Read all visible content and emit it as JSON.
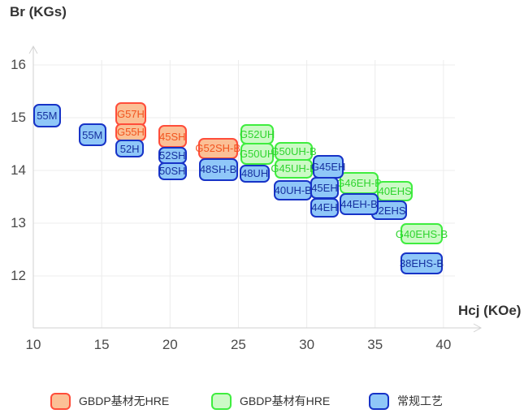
{
  "chart_data": {
    "type": "scatter",
    "title": "",
    "xlabel": "Hcj (KOe)",
    "ylabel": "Br (KGs)",
    "x_ticks": [
      10,
      15,
      20,
      25,
      30,
      35,
      40
    ],
    "y_ticks": [
      16,
      15,
      14,
      13,
      12
    ],
    "x_range": [
      10,
      43
    ],
    "y_range": [
      11,
      16.3
    ],
    "grid": true,
    "legend_position": "bottom",
    "series": [
      {
        "name": "GBDP基材无HRE",
        "colors": {
          "fill": "#FBC096",
          "border": "#FF4D3A",
          "text": "#F2541F"
        },
        "boxes": [
          {
            "label": "G57H",
            "hcj": [
              16.0,
              18.25
            ],
            "br": [
              14.85,
              15.3
            ]
          },
          {
            "label": "G55H",
            "hcj": [
              16.0,
              18.25
            ],
            "br": [
              14.55,
              14.9
            ]
          },
          {
            "label": "45SH",
            "hcj": [
              19.15,
              21.2
            ],
            "br": [
              14.43,
              14.86
            ]
          },
          {
            "label": "G52SH-B",
            "hcj": [
              22.05,
              24.95
            ],
            "br": [
              14.22,
              14.62
            ]
          }
        ]
      },
      {
        "name": "GBDP基材有HRE",
        "colors": {
          "fill": "#CCFAC6",
          "border": "#3FED3F",
          "text": "#2FD42F"
        },
        "boxes": [
          {
            "label": "G52UH",
            "hcj": [
              25.15,
              27.6
            ],
            "br": [
              14.49,
              14.88
            ]
          },
          {
            "label": "G50UH",
            "hcj": [
              25.15,
              27.6
            ],
            "br": [
              14.11,
              14.52
            ]
          },
          {
            "label": "G50UH-B",
            "hcj": [
              27.65,
              30.45
            ],
            "br": [
              14.18,
              14.54
            ]
          },
          {
            "label": "G45UH-B",
            "hcj": [
              27.65,
              30.45
            ],
            "br": [
              13.85,
              14.22
            ]
          },
          {
            "label": "G46EH-B",
            "hcj": [
              32.4,
              35.25
            ],
            "br": [
              13.55,
              13.97
            ]
          },
          {
            "label": "40EHS",
            "hcj": [
              35.15,
              37.75
            ],
            "br": [
              13.42,
              13.8
            ]
          },
          {
            "label": "G40EHS-B",
            "hcj": [
              36.85,
              39.95
            ],
            "br": [
              12.6,
              13.0
            ]
          }
        ]
      },
      {
        "name": "常规工艺",
        "colors": {
          "fill": "#8FC7F8",
          "border": "#1733C7",
          "text": "#16309F"
        },
        "boxes": [
          {
            "label": "55M",
            "hcj": [
              10.0,
              12.0
            ],
            "br": [
              14.82,
              15.26
            ]
          },
          {
            "label": "55M",
            "hcj": [
              13.3,
              15.35
            ],
            "br": [
              14.46,
              14.89
            ]
          },
          {
            "label": "52H",
            "hcj": [
              16.0,
              18.1
            ],
            "br": [
              14.25,
              14.58
            ]
          },
          {
            "label": "52SH",
            "hcj": [
              19.15,
              21.2
            ],
            "br": [
              14.12,
              14.45
            ]
          },
          {
            "label": "50SH",
            "hcj": [
              19.15,
              21.2
            ],
            "br": [
              13.82,
              14.15
            ]
          },
          {
            "label": "48SH-B",
            "hcj": [
              22.1,
              24.95
            ],
            "br": [
              13.8,
              14.23
            ]
          },
          {
            "label": "48UH",
            "hcj": [
              25.1,
              27.3
            ],
            "br": [
              13.77,
              14.11
            ]
          },
          {
            "label": "40UH-B",
            "hcj": [
              27.6,
              30.4
            ],
            "br": [
              13.43,
              13.82
            ]
          },
          {
            "label": "G45EH",
            "hcj": [
              30.45,
              32.7
            ],
            "br": [
              13.85,
              14.29
            ]
          },
          {
            "label": "45EH",
            "hcj": [
              30.25,
              32.35
            ],
            "br": [
              13.46,
              13.88
            ]
          },
          {
            "label": "44EH",
            "hcj": [
              30.25,
              32.35
            ],
            "br": [
              13.11,
              13.48
            ]
          },
          {
            "label": "42EHS",
            "hcj": [
              34.7,
              37.35
            ],
            "br": [
              13.06,
              13.43
            ]
          },
          {
            "label": "44EH-B",
            "hcj": [
              32.4,
              35.25
            ],
            "br": [
              13.15,
              13.57
            ]
          },
          {
            "label": "38EHS-B",
            "hcj": [
              36.85,
              39.95
            ],
            "br": [
              12.03,
              12.45
            ]
          }
        ]
      }
    ]
  },
  "legend": {
    "items": [
      "GBDP基材无HRE",
      "GBDP基材有HRE",
      "常规工艺"
    ]
  }
}
